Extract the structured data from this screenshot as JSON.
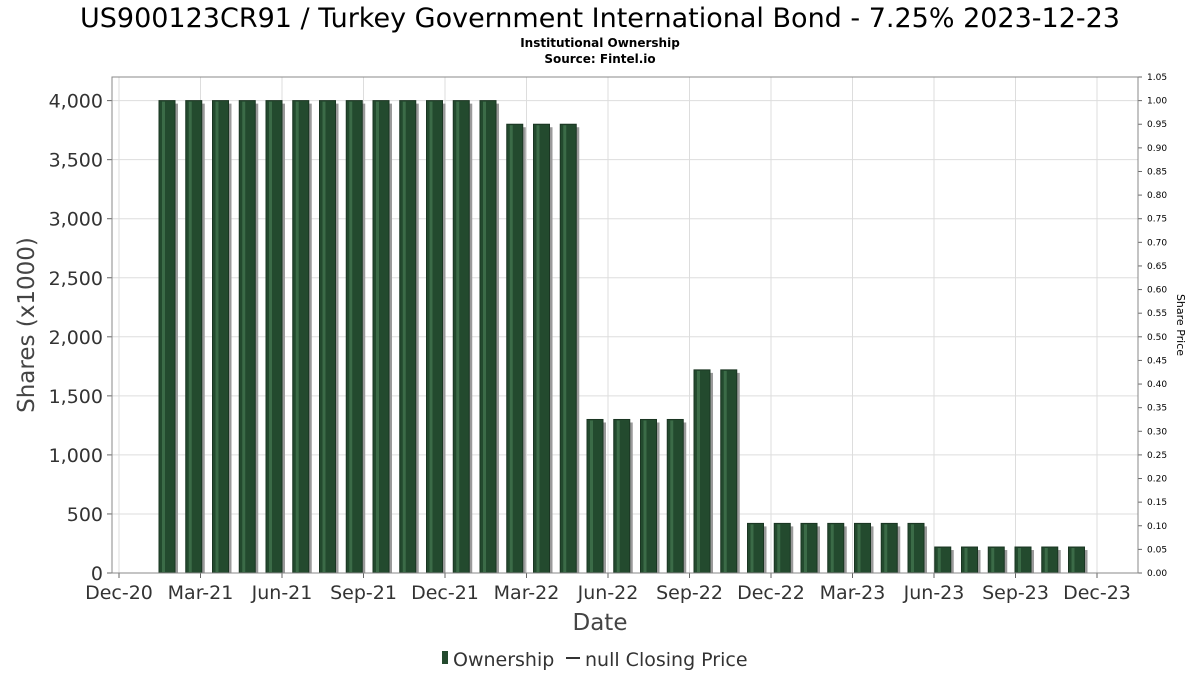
{
  "chart_data": {
    "type": "bar",
    "title": "US900123CR91 / Turkey Government International Bond - 7.25% 2023-12-23",
    "subtitle_lines": [
      "Institutional Ownership",
      "Source: Fintel.io"
    ],
    "xlabel": "Date",
    "ylabel": "Shares (x1000)",
    "y2label": "Share Price",
    "x_tick_labels": [
      "Dec-20",
      "Mar-21",
      "Jun-21",
      "Sep-21",
      "Dec-21",
      "Mar-22",
      "Jun-22",
      "Sep-22",
      "Dec-22",
      "Mar-23",
      "Jun-23",
      "Sep-23",
      "Dec-23"
    ],
    "y_tick_labels": [
      "0",
      "500",
      "1,000",
      "1,500",
      "2,000",
      "2,500",
      "3,000",
      "3,500",
      "4,000"
    ],
    "y2_tick_labels": [
      "0.00",
      "0.05",
      "0.10",
      "0.15",
      "0.20",
      "0.25",
      "0.30",
      "0.35",
      "0.40",
      "0.45",
      "0.50",
      "0.55",
      "0.60",
      "0.65",
      "0.70",
      "0.75",
      "0.80",
      "0.85",
      "0.90",
      "0.95",
      "1.00",
      "1.05"
    ],
    "ylim": [
      0,
      4200
    ],
    "y2lim": [
      0,
      1.05
    ],
    "grid": true,
    "legend_position": "bottom-center",
    "colors": {
      "bar": "#234a2e",
      "bar_highlight": "#3b6b47",
      "bar_shadow": "#9a9a9a",
      "grid": "#dddddd"
    },
    "series": [
      {
        "name": "Ownership",
        "values": [
          4000,
          4000,
          4000,
          4000,
          4000,
          4000,
          4000,
          4000,
          4000,
          4000,
          4000,
          4000,
          4000,
          3800,
          3800,
          3800,
          1300,
          1300,
          1300,
          1300,
          1720,
          1720,
          420,
          420,
          420,
          420,
          420,
          420,
          420,
          220,
          220,
          220,
          220,
          220,
          220
        ]
      },
      {
        "name": "null Closing Price",
        "values": []
      }
    ]
  }
}
